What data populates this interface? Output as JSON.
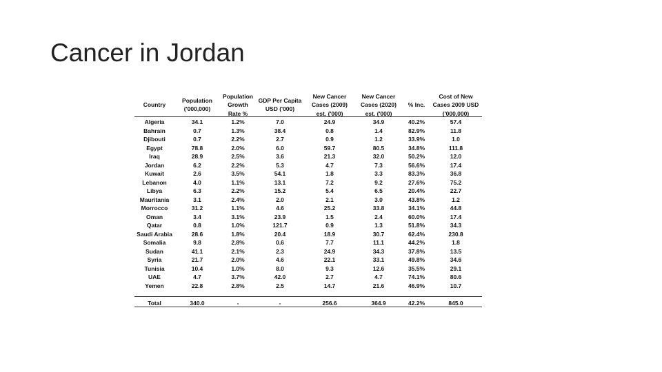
{
  "slide": {
    "title": "Cancer in Jordan"
  },
  "table": {
    "headers": [
      [
        "Country"
      ],
      [
        "Population",
        "('000,000)"
      ],
      [
        "Population",
        "Growth",
        "Rate %"
      ],
      [
        "GDP Per Capita",
        "USD ('000)"
      ],
      [
        "New Cancer",
        "Cases (2009)",
        "est. ('000)"
      ],
      [
        "New Cancer",
        "Cases (2020)",
        "est. ('000)"
      ],
      [
        "% Inc."
      ],
      [
        "Cost of New",
        "Cases 2009 USD",
        "('000,000)"
      ]
    ],
    "rows": [
      [
        "Algeria",
        "34.1",
        "1.2%",
        "7.0",
        "24.9",
        "34.9",
        "40.2%",
        "57.4"
      ],
      [
        "Bahrain",
        "0.7",
        "1.3%",
        "38.4",
        "0.8",
        "1.4",
        "82.9%",
        "11.8"
      ],
      [
        "Djibouti",
        "0.7",
        "2.2%",
        "2.7",
        "0.9",
        "1.2",
        "33.9%",
        "1.0"
      ],
      [
        "Egypt",
        "78.8",
        "2.0%",
        "6.0",
        "59.7",
        "80.5",
        "34.8%",
        "111.8"
      ],
      [
        "Iraq",
        "28.9",
        "2.5%",
        "3.6",
        "21.3",
        "32.0",
        "50.2%",
        "12.0"
      ],
      [
        "Jordan",
        "6.2",
        "2.2%",
        "5.3",
        "4.7",
        "7.3",
        "56.6%",
        "17.4"
      ],
      [
        "Kuwait",
        "2.6",
        "3.5%",
        "54.1",
        "1.8",
        "3.3",
        "83.3%",
        "36.8"
      ],
      [
        "Lebanon",
        "4.0",
        "1.1%",
        "13.1",
        "7.2",
        "9.2",
        "27.6%",
        "75.2"
      ],
      [
        "Libya",
        "6.3",
        "2.2%",
        "15.2",
        "5.4",
        "6.5",
        "20.4%",
        "22.7"
      ],
      [
        "Mauritania",
        "3.1",
        "2.4%",
        "2.0",
        "2.1",
        "3.0",
        "43.8%",
        "1.2"
      ],
      [
        "Morrocco",
        "31.2",
        "1.1%",
        "4.6",
        "25.2",
        "33.8",
        "34.1%",
        "44.8"
      ],
      [
        "Oman",
        "3.4",
        "3.1%",
        "23.9",
        "1.5",
        "2.4",
        "60.0%",
        "17.4"
      ],
      [
        "Qatar",
        "0.8",
        "1.0%",
        "121.7",
        "0.9",
        "1.3",
        "51.8%",
        "34.3"
      ],
      [
        "Saudi Arabia",
        "28.6",
        "1.8%",
        "20.4",
        "18.9",
        "30.7",
        "62.4%",
        "230.8"
      ],
      [
        "Somalia",
        "9.8",
        "2.8%",
        "0.6",
        "7.7",
        "11.1",
        "44.2%",
        "1.8"
      ],
      [
        "Sudan",
        "41.1",
        "2.1%",
        "2.3",
        "24.9",
        "34.3",
        "37.8%",
        "13.5"
      ],
      [
        "Syria",
        "21.7",
        "2.0%",
        "4.6",
        "22.1",
        "33.1",
        "49.8%",
        "34.6"
      ],
      [
        "Tunisia",
        "10.4",
        "1.0%",
        "8.0",
        "9.3",
        "12.6",
        "35.5%",
        "29.1"
      ],
      [
        "UAE",
        "4.7",
        "3.7%",
        "42.0",
        "2.7",
        "4.7",
        "74.1%",
        "80.6"
      ],
      [
        "Yemen",
        "22.8",
        "2.8%",
        "2.5",
        "14.7",
        "21.6",
        "46.9%",
        "10.7"
      ]
    ],
    "total": [
      "Total",
      "340.0",
      "-",
      "-",
      "256.6",
      "364.9",
      "42.2%",
      "845.0"
    ]
  }
}
